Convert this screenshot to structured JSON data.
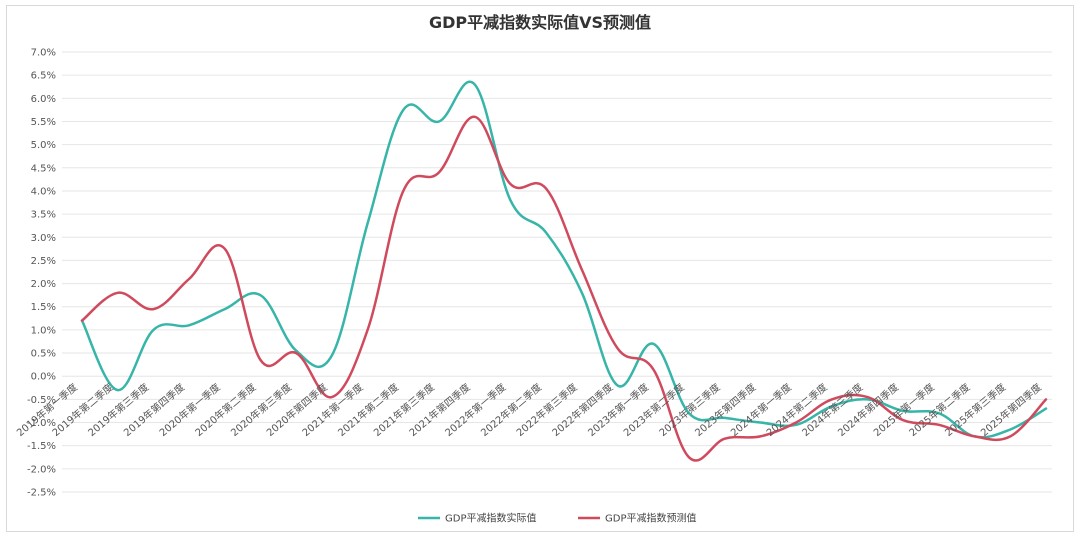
{
  "chart_data": {
    "type": "line",
    "title": "GDP平减指数实际值VS预测值",
    "xlabel": "",
    "ylabel": "",
    "ylim": [
      -2.5,
      7.0
    ],
    "ytick_step": 0.5,
    "grid": true,
    "legend_position": "bottom",
    "categories": [
      "2019年第一季度",
      "2019年第二季度",
      "2019年第三季度",
      "2019年第四季度",
      "2020年第一季度",
      "2020年第二季度",
      "2020年第三季度",
      "2020年第四季度",
      "2021年第一季度",
      "2021年第二季度",
      "2021年第三季度",
      "2021年第四季度",
      "2022年第一季度",
      "2022年第二季度",
      "2022年第三季度",
      "2022年第四季度",
      "2023年第一季度",
      "2023年第二季度",
      "2023年第三季度",
      "2023年第四季度",
      "2024年第一季度",
      "2024年第二季度",
      "2024年第三季度",
      "2024年第四季度",
      "2025年第一季度",
      "2025年第二季度",
      "2025年第三季度",
      "2025年第四季度"
    ],
    "series": [
      {
        "name": "GDP平减指数实际值",
        "color": "#36b5a8",
        "values": [
          1.2,
          -0.3,
          1.0,
          1.1,
          1.45,
          1.75,
          0.55,
          0.45,
          3.3,
          5.75,
          5.5,
          6.3,
          3.8,
          3.1,
          1.8,
          -0.2,
          0.7,
          -0.8,
          -0.9,
          -1.0,
          -1.05,
          -0.65,
          -0.5,
          -0.75,
          -0.8,
          -1.3,
          -1.15,
          -0.7
        ]
      },
      {
        "name": "GDP平减指数预测值",
        "color": "#d04a5e",
        "values": [
          1.2,
          1.8,
          1.45,
          2.1,
          2.75,
          0.35,
          0.5,
          -0.45,
          1.0,
          4.0,
          4.4,
          5.6,
          4.15,
          4.05,
          2.3,
          0.6,
          0.15,
          -1.75,
          -1.35,
          -1.3,
          -1.0,
          -0.5,
          -0.45,
          -0.95,
          -1.05,
          -1.3,
          -1.3,
          -0.5
        ]
      }
    ]
  }
}
